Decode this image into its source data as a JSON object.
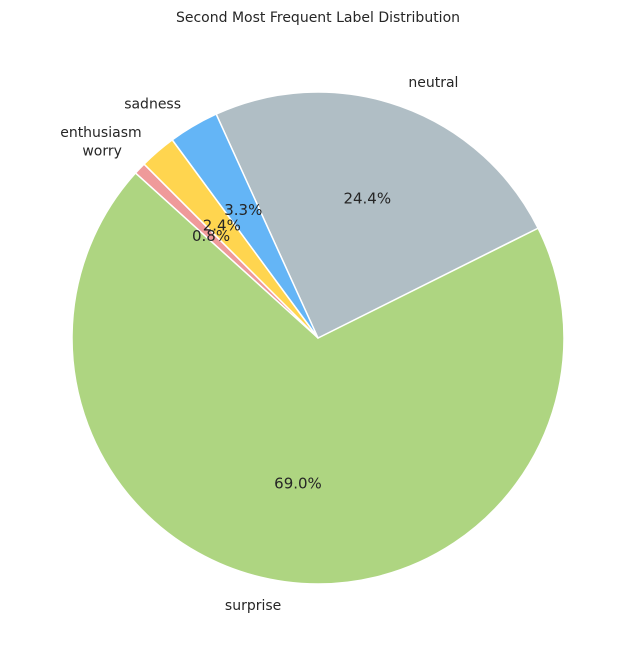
{
  "chart_data": {
    "type": "pie",
    "title": "Second Most Frequent Label Distribution",
    "start_angle_deg": 135,
    "direction": "counterclockwise",
    "slices": [
      {
        "label": "worry",
        "value": 0.8,
        "pct_label": "0.8%",
        "color": "#EF9A9A"
      },
      {
        "label": "surprise",
        "value": 69.0,
        "pct_label": "69.0%",
        "color": "#AED581"
      },
      {
        "label": "neutral",
        "value": 24.4,
        "pct_label": "24.4%",
        "color": "#B0BEC5"
      },
      {
        "label": "sadness",
        "value": 3.3,
        "pct_label": "3.3%",
        "color": "#64B5F6"
      },
      {
        "label": "enthusiasm",
        "value": 2.4,
        "pct_label": "2.4%",
        "color": "#FFD54F"
      }
    ]
  }
}
